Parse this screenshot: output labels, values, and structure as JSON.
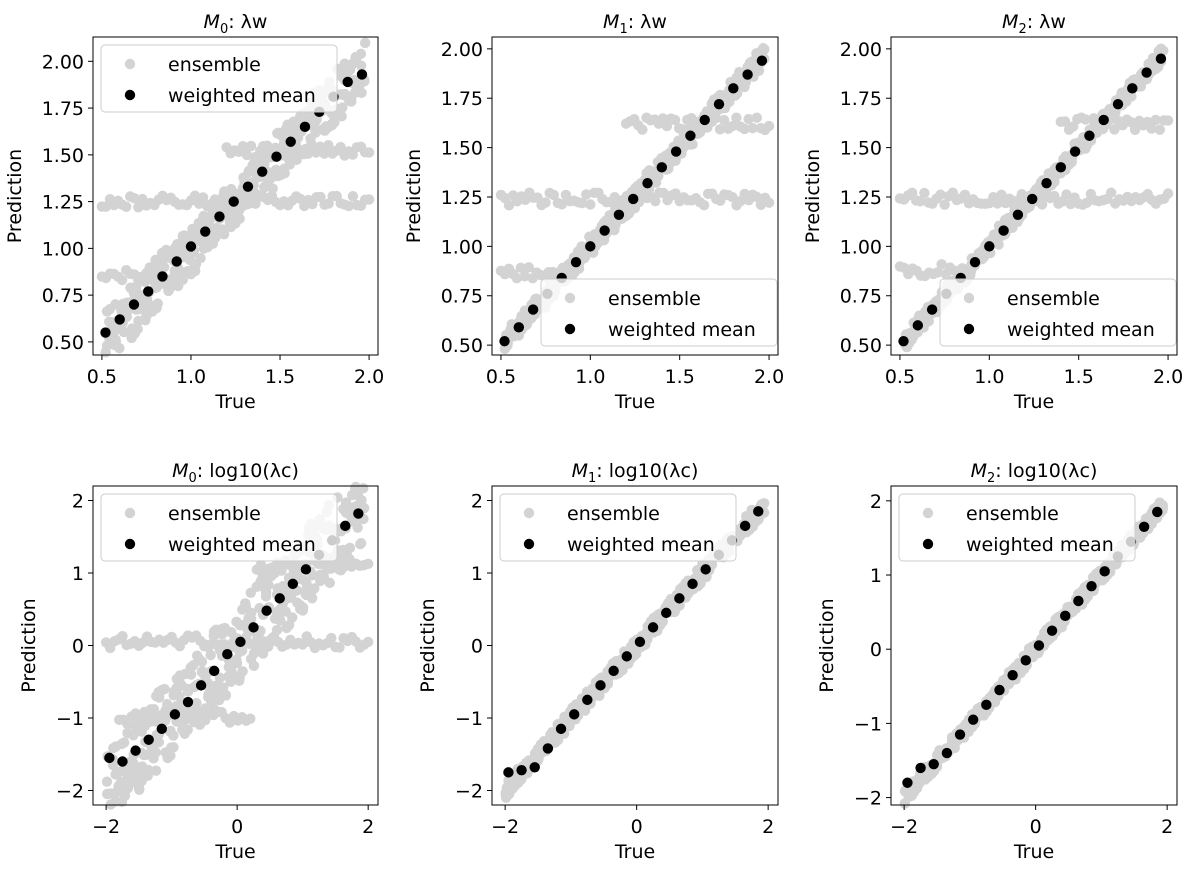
{
  "palette": {
    "ensemble": "#d3d3d3",
    "weighted_mean": "#000000"
  },
  "chart_data": [
    {
      "type": "scatter",
      "model": "M",
      "sub": "0",
      "param": "λw",
      "xlabel": "True",
      "ylabel": "Prediction",
      "xlim": [
        0.45,
        2.05
      ],
      "ylim": [
        0.43,
        2.13
      ],
      "xticks": [
        "0.5",
        "1.0",
        "1.5",
        "2.0"
      ],
      "yticks": [
        "0.50",
        "0.75",
        "1.00",
        "1.25",
        "1.50",
        "1.75",
        "2.00"
      ],
      "legend": "top-left",
      "series": [
        {
          "name": "ensemble",
          "band": 0.14,
          "plateaus": [
            {
              "y": 1.25,
              "x": [
                0.5,
                2.0
              ]
            },
            {
              "y": 0.85,
              "x": [
                0.5,
                1.0
              ]
            },
            {
              "y": 1.52,
              "x": [
                1.2,
                2.0
              ]
            }
          ]
        },
        {
          "name": "weighted mean",
          "x": [
            0.52,
            0.6,
            0.68,
            0.76,
            0.84,
            0.92,
            1.0,
            1.08,
            1.16,
            1.24,
            1.32,
            1.4,
            1.48,
            1.56,
            1.64,
            1.72,
            1.8,
            1.88,
            1.96
          ],
          "y": [
            0.55,
            0.62,
            0.7,
            0.77,
            0.85,
            0.93,
            1.01,
            1.09,
            1.17,
            1.25,
            1.33,
            1.41,
            1.49,
            1.57,
            1.65,
            1.73,
            1.81,
            1.89,
            1.93
          ]
        }
      ]
    },
    {
      "type": "scatter",
      "model": "M",
      "sub": "1",
      "param": "λw",
      "xlabel": "True",
      "ylabel": "Prediction",
      "xlim": [
        0.45,
        2.05
      ],
      "ylim": [
        0.45,
        2.06
      ],
      "xticks": [
        "0.5",
        "1.0",
        "1.5",
        "2.0"
      ],
      "yticks": [
        "0.50",
        "0.75",
        "1.00",
        "1.25",
        "1.50",
        "1.75",
        "2.00"
      ],
      "legend": "bottom-right",
      "series": [
        {
          "name": "ensemble",
          "band": 0.05,
          "plateaus": [
            {
              "y": 1.24,
              "x": [
                0.5,
                2.0
              ]
            },
            {
              "y": 1.62,
              "x": [
                1.2,
                2.0
              ]
            },
            {
              "y": 0.87,
              "x": [
                0.5,
                0.9
              ]
            }
          ]
        },
        {
          "name": "weighted mean",
          "x": [
            0.52,
            0.6,
            0.68,
            0.76,
            0.84,
            0.92,
            1.0,
            1.08,
            1.16,
            1.24,
            1.32,
            1.4,
            1.48,
            1.56,
            1.64,
            1.72,
            1.8,
            1.88,
            1.96
          ],
          "y": [
            0.52,
            0.59,
            0.68,
            0.76,
            0.84,
            0.92,
            1.0,
            1.08,
            1.16,
            1.24,
            1.32,
            1.4,
            1.48,
            1.56,
            1.64,
            1.72,
            1.8,
            1.87,
            1.94
          ]
        }
      ]
    },
    {
      "type": "scatter",
      "model": "M",
      "sub": "2",
      "param": "λw",
      "xlabel": "True",
      "ylabel": "Prediction",
      "xlim": [
        0.45,
        2.05
      ],
      "ylim": [
        0.45,
        2.06
      ],
      "xticks": [
        "0.5",
        "1.0",
        "1.5",
        "2.0"
      ],
      "yticks": [
        "0.50",
        "0.75",
        "1.00",
        "1.25",
        "1.50",
        "1.75",
        "2.00"
      ],
      "legend": "bottom-right",
      "series": [
        {
          "name": "ensemble",
          "band": 0.04,
          "plateaus": [
            {
              "y": 1.24,
              "x": [
                0.5,
                2.0
              ]
            },
            {
              "y": 1.62,
              "x": [
                1.4,
                2.0
              ]
            },
            {
              "y": 0.88,
              "x": [
                0.5,
                0.85
              ]
            }
          ]
        },
        {
          "name": "weighted mean",
          "x": [
            0.52,
            0.6,
            0.68,
            0.76,
            0.84,
            0.92,
            1.0,
            1.08,
            1.16,
            1.24,
            1.32,
            1.4,
            1.48,
            1.56,
            1.64,
            1.72,
            1.8,
            1.88,
            1.96
          ],
          "y": [
            0.52,
            0.6,
            0.68,
            0.76,
            0.84,
            0.92,
            1.0,
            1.08,
            1.16,
            1.24,
            1.32,
            1.4,
            1.48,
            1.56,
            1.64,
            1.72,
            1.8,
            1.88,
            1.95
          ]
        }
      ]
    },
    {
      "type": "scatter",
      "model": "M",
      "sub": "0",
      "param": "log10(λc)",
      "xlabel": "True",
      "ylabel": "Prediction",
      "xlim": [
        -2.2,
        2.15
      ],
      "ylim": [
        -2.2,
        2.2
      ],
      "xticks": [
        "−2",
        "0",
        "2"
      ],
      "yticks": [
        "−2",
        "−1",
        "0",
        "1",
        "2"
      ],
      "legend": "top-left",
      "series": [
        {
          "name": "ensemble",
          "band": 0.55,
          "plateaus": [
            {
              "y": 0.05,
              "x": [
                -2.0,
                2.0
              ]
            },
            {
              "y": -1.0,
              "x": [
                -1.8,
                0.2
              ]
            },
            {
              "y": 1.1,
              "x": [
                0.3,
                2.0
              ]
            }
          ]
        },
        {
          "name": "weighted mean",
          "x": [
            -1.95,
            -1.75,
            -1.55,
            -1.35,
            -1.15,
            -0.95,
            -0.75,
            -0.55,
            -0.35,
            -0.15,
            0.05,
            0.25,
            0.45,
            0.65,
            0.85,
            1.05,
            1.25,
            1.45,
            1.65,
            1.85
          ],
          "y": [
            -1.55,
            -1.6,
            -1.45,
            -1.3,
            -1.15,
            -0.95,
            -0.78,
            -0.55,
            -0.35,
            -0.12,
            0.05,
            0.25,
            0.48,
            0.65,
            0.85,
            1.05,
            1.25,
            1.45,
            1.65,
            1.82
          ]
        }
      ]
    },
    {
      "type": "scatter",
      "model": "M",
      "sub": "1",
      "param": "log10(λc)",
      "xlabel": "True",
      "ylabel": "Prediction",
      "xlim": [
        -2.2,
        2.15
      ],
      "ylim": [
        -2.2,
        2.2
      ],
      "xticks": [
        "−2",
        "0",
        "2"
      ],
      "yticks": [
        "−2",
        "−1",
        "0",
        "1",
        "2"
      ],
      "legend": "top-left",
      "series": [
        {
          "name": "ensemble",
          "band": 0.12,
          "plateaus": []
        },
        {
          "name": "weighted mean",
          "x": [
            -1.95,
            -1.75,
            -1.55,
            -1.35,
            -1.15,
            -0.95,
            -0.75,
            -0.55,
            -0.35,
            -0.15,
            0.05,
            0.25,
            0.45,
            0.65,
            0.85,
            1.05,
            1.25,
            1.45,
            1.65,
            1.85
          ],
          "y": [
            -1.75,
            -1.72,
            -1.68,
            -1.42,
            -1.15,
            -0.95,
            -0.75,
            -0.55,
            -0.35,
            -0.15,
            0.05,
            0.25,
            0.45,
            0.65,
            0.85,
            1.05,
            1.25,
            1.45,
            1.65,
            1.85
          ]
        }
      ]
    },
    {
      "type": "scatter",
      "model": "M",
      "sub": "2",
      "param": "log10(λc)",
      "xlabel": "True",
      "ylabel": "Prediction",
      "xlim": [
        -2.2,
        2.15
      ],
      "ylim": [
        -2.1,
        2.2
      ],
      "xticks": [
        "−2",
        "0",
        "2"
      ],
      "yticks": [
        "−2",
        "−1",
        "0",
        "1",
        "2"
      ],
      "legend": "top-left",
      "series": [
        {
          "name": "ensemble",
          "band": 0.1,
          "plateaus": []
        },
        {
          "name": "weighted mean",
          "x": [
            -1.95,
            -1.75,
            -1.55,
            -1.35,
            -1.15,
            -0.95,
            -0.75,
            -0.55,
            -0.35,
            -0.15,
            0.05,
            0.25,
            0.45,
            0.65,
            0.85,
            1.05,
            1.25,
            1.45,
            1.65,
            1.85
          ],
          "y": [
            -1.8,
            -1.6,
            -1.55,
            -1.4,
            -1.15,
            -0.95,
            -0.75,
            -0.55,
            -0.35,
            -0.15,
            0.05,
            0.25,
            0.45,
            0.65,
            0.85,
            1.05,
            1.25,
            1.45,
            1.65,
            1.85
          ]
        }
      ]
    }
  ]
}
